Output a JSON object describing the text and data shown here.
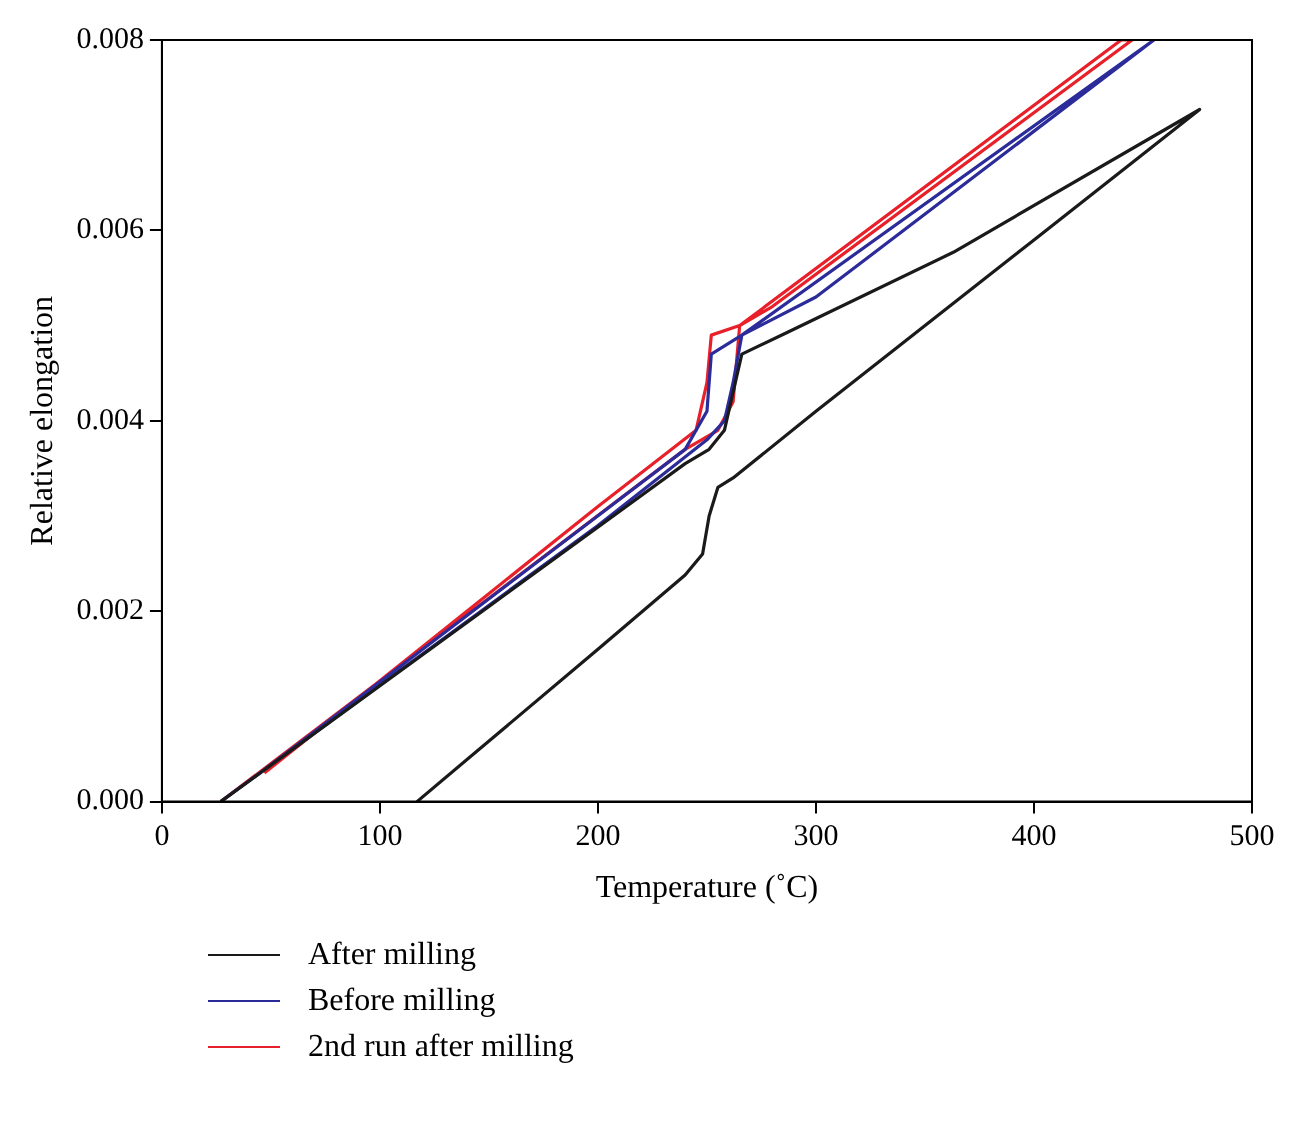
{
  "chart_data": {
    "type": "line",
    "xlabel": "Temperature (˚C)",
    "ylabel": "Relative elongation",
    "xlim": [
      0,
      500
    ],
    "xticks": [
      0,
      100,
      200,
      300,
      400,
      500
    ],
    "ylim": [
      0,
      0.008
    ],
    "yticks": [
      {
        "value": 0,
        "label": "0.000"
      },
      {
        "value": 0.002,
        "label": "0.002"
      },
      {
        "value": 0.004,
        "label": "0.004"
      },
      {
        "value": 0.006,
        "label": "0.006"
      },
      {
        "value": 0.008,
        "label": "0.008"
      }
    ],
    "grid": false,
    "legend": "bottom",
    "marker": "none",
    "line_style": "solid",
    "series": [
      {
        "name": "After milling",
        "color": "#1a1a1a",
        "x": [
          27,
          150,
          240,
          251,
          258,
          262,
          266,
          287,
          363,
          476,
          400,
          300,
          262,
          255,
          251,
          248,
          240,
          200,
          117
        ],
        "values": [
          0,
          0.00205,
          0.00355,
          0.0037,
          0.0039,
          0.0043,
          0.0047,
          0.00493,
          0.00577,
          0.00727,
          0.0059,
          0.0041,
          0.0034,
          0.0033,
          0.003,
          0.0026,
          0.00238,
          0.0016,
          0
        ]
      },
      {
        "name": "Before milling",
        "color": "#2b2b9a",
        "x": [
          27,
          200,
          250,
          258,
          262,
          266,
          300,
          455,
          266,
          252,
          250,
          240,
          45
        ],
        "values": [
          0,
          0.0029,
          0.0038,
          0.004,
          0.0044,
          0.0049,
          0.0053,
          0.008,
          0.0049,
          0.0047,
          0.0041,
          0.0037,
          0.0003
        ]
      },
      {
        "name": "2nd run after milling",
        "color": "#e8202a",
        "x": [
          27,
          240,
          255,
          262,
          265,
          280,
          445,
          440,
          265,
          252,
          250,
          245,
          200,
          47
        ],
        "values": [
          0,
          0.0037,
          0.0039,
          0.0042,
          0.005,
          0.0052,
          0.008,
          0.008,
          0.005,
          0.0049,
          0.0044,
          0.0039,
          0.0031,
          0.0003
        ]
      }
    ]
  }
}
